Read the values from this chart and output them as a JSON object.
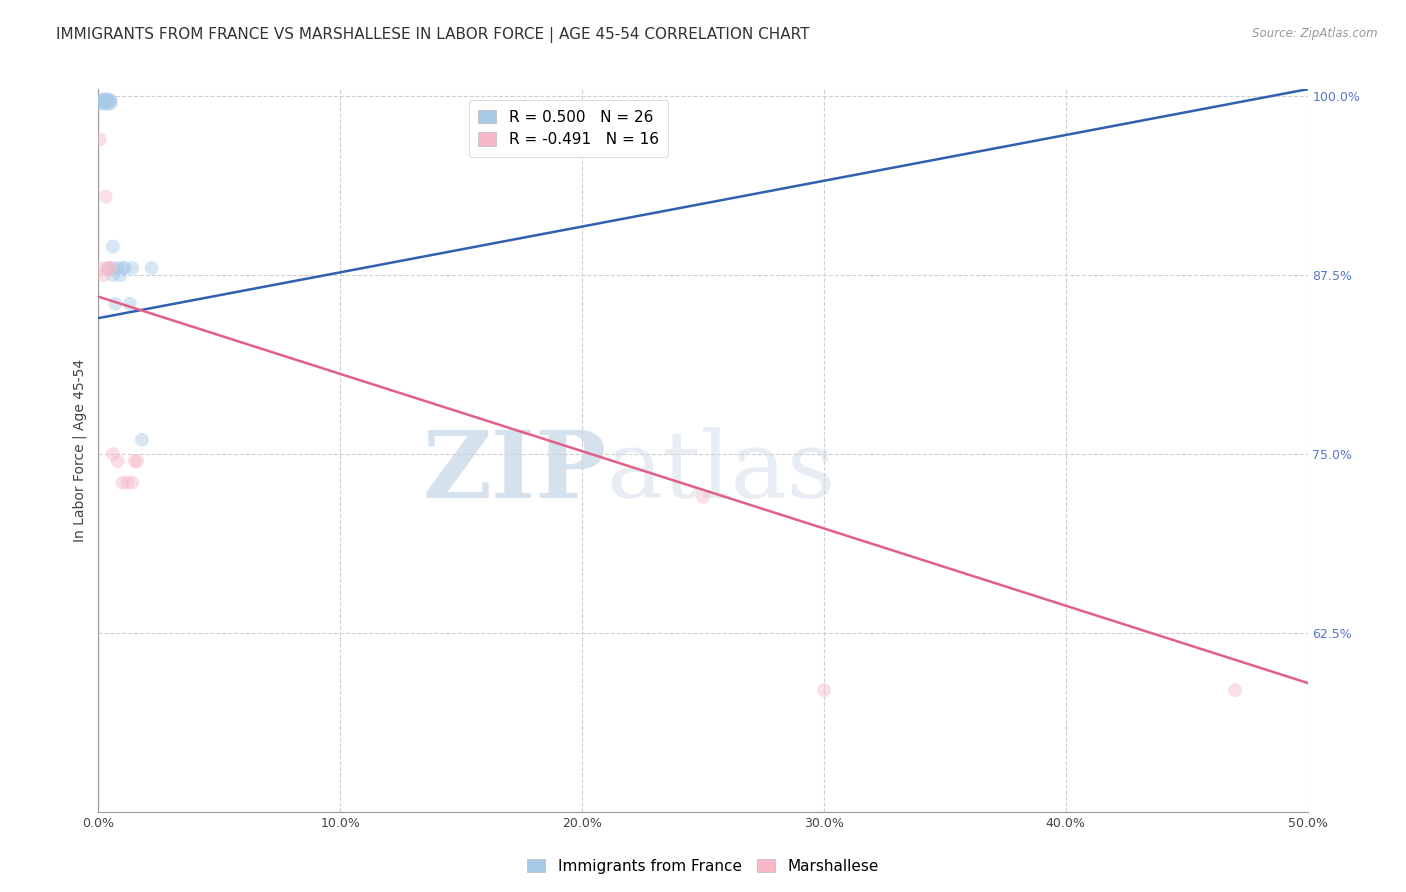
{
  "title": "IMMIGRANTS FROM FRANCE VS MARSHALLESE IN LABOR FORCE | AGE 45-54 CORRELATION CHART",
  "source": "Source: ZipAtlas.com",
  "ylabel": "In Labor Force | Age 45-54",
  "xlim": [
    0.0,
    0.5
  ],
  "ylim": [
    0.5,
    1.005
  ],
  "xtick_labels": [
    "0.0%",
    "",
    "",
    "",
    "",
    "",
    "",
    "",
    "",
    "",
    "10.0%",
    "",
    "",
    "",
    "",
    "",
    "",
    "",
    "",
    "",
    "20.0%",
    "",
    "",
    "",
    "",
    "",
    "",
    "",
    "",
    "",
    "30.0%",
    "",
    "",
    "",
    "",
    "",
    "",
    "",
    "",
    "",
    "40.0%",
    "",
    "",
    "",
    "",
    "",
    "",
    "",
    "",
    "",
    "50.0%"
  ],
  "xtick_vals": [
    0.0,
    0.01,
    0.02,
    0.03,
    0.04,
    0.05,
    0.06,
    0.07,
    0.08,
    0.09,
    0.1,
    0.11,
    0.12,
    0.13,
    0.14,
    0.15,
    0.16,
    0.17,
    0.18,
    0.19,
    0.2,
    0.21,
    0.22,
    0.23,
    0.24,
    0.25,
    0.26,
    0.27,
    0.28,
    0.29,
    0.3,
    0.31,
    0.32,
    0.33,
    0.34,
    0.35,
    0.36,
    0.37,
    0.38,
    0.39,
    0.4,
    0.41,
    0.42,
    0.43,
    0.44,
    0.45,
    0.46,
    0.47,
    0.48,
    0.49,
    0.5
  ],
  "xtick_major_vals": [
    0.0,
    0.1,
    0.2,
    0.3,
    0.4,
    0.5
  ],
  "xtick_major_labels": [
    "0.0%",
    "10.0%",
    "20.0%",
    "30.0%",
    "40.0%",
    "50.0%"
  ],
  "ytick_labels": [
    "100.0%",
    "87.5%",
    "75.0%",
    "62.5%"
  ],
  "ytick_vals": [
    1.0,
    0.875,
    0.75,
    0.625
  ],
  "france_R": 0.5,
  "france_N": 26,
  "marshallese_R": -0.491,
  "marshallese_N": 16,
  "france_color": "#a8c8e8",
  "france_line_color": "#3060b0",
  "marshallese_color": "#f8b8c8",
  "marshallese_line_color": "#e06088",
  "legend_label_france": "Immigrants from France",
  "legend_label_marshallese": "Marshallese",
  "france_x": [
    0.0005,
    0.001,
    0.0015,
    0.002,
    0.002,
    0.003,
    0.003,
    0.003,
    0.004,
    0.004,
    0.004,
    0.005,
    0.005,
    0.005,
    0.006,
    0.006,
    0.006,
    0.007,
    0.008,
    0.009,
    0.01,
    0.011,
    0.013,
    0.014,
    0.018,
    0.022
  ],
  "france_y": [
    0.995,
    0.997,
    0.998,
    0.995,
    0.997,
    0.997,
    0.995,
    0.998,
    0.995,
    0.998,
    0.88,
    0.997,
    0.995,
    0.997,
    0.88,
    0.895,
    0.875,
    0.855,
    0.88,
    0.875,
    0.88,
    0.88,
    0.855,
    0.88,
    0.76,
    0.88
  ],
  "marshallese_x": [
    0.0005,
    0.001,
    0.002,
    0.003,
    0.004,
    0.005,
    0.006,
    0.008,
    0.01,
    0.012,
    0.014,
    0.015,
    0.016,
    0.25,
    0.3,
    0.47
  ],
  "marshallese_y": [
    0.97,
    0.88,
    0.875,
    0.93,
    0.88,
    0.88,
    0.75,
    0.745,
    0.73,
    0.73,
    0.73,
    0.745,
    0.745,
    0.72,
    0.585,
    0.585
  ],
  "france_trend_x0": 0.0,
  "france_trend_y0": 0.845,
  "france_trend_x1": 0.5,
  "france_trend_y1": 1.005,
  "marsh_trend_x0": 0.0,
  "marsh_trend_y0": 0.86,
  "marsh_trend_x1": 0.5,
  "marsh_trend_y1": 0.59,
  "watermark_zip": "ZIP",
  "watermark_atlas": "atlas",
  "background_color": "#ffffff",
  "grid_color": "#d0d0d0",
  "title_fontsize": 11,
  "axis_label_fontsize": 10,
  "tick_fontsize": 9,
  "legend_fontsize": 11,
  "marker_size": 100,
  "marker_alpha": 0.45,
  "line_width": 1.8
}
